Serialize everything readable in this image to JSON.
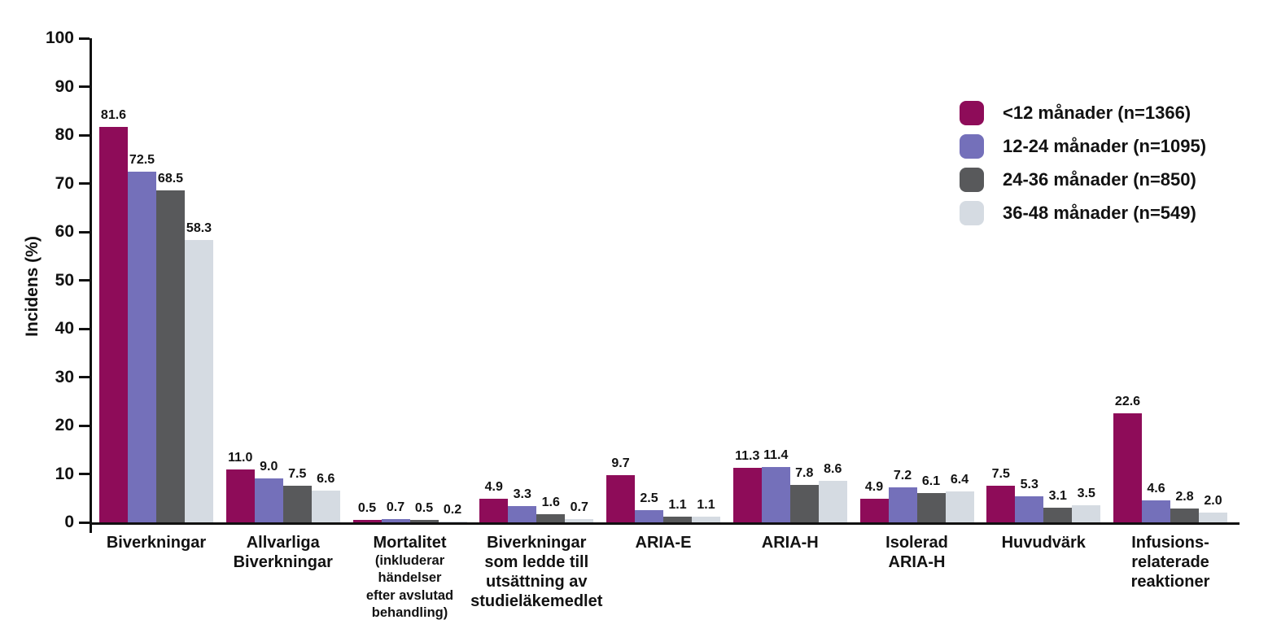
{
  "figure": {
    "background": "#ffffff",
    "axis_color": "#111111",
    "text_color": "#121212"
  },
  "chart_data": {
    "type": "bar",
    "title": "",
    "xlabel": "",
    "ylabel": "Incidens (%)",
    "ylim": [
      0,
      100
    ],
    "yticks": [
      0,
      10,
      20,
      30,
      40,
      50,
      60,
      70,
      80,
      90,
      100
    ],
    "grid": false,
    "legend_position": "top-right",
    "value_label_decimals": 1,
    "categories": [
      {
        "lines": [
          "Biverkningar"
        ],
        "sub_lines": []
      },
      {
        "lines": [
          "Allvarliga",
          "Biverkningar"
        ],
        "sub_lines": []
      },
      {
        "lines": [
          "Mortalitet"
        ],
        "sub_lines": [
          "(inkluderar",
          "händelser",
          "efter avslutad",
          "behandling)"
        ]
      },
      {
        "lines": [
          "Biverkningar",
          "som ledde till",
          "utsättning av",
          "studieläkemedlet"
        ],
        "sub_lines": []
      },
      {
        "lines": [
          "ARIA-E"
        ],
        "sub_lines": []
      },
      {
        "lines": [
          "ARIA-H"
        ],
        "sub_lines": []
      },
      {
        "lines": [
          "Isolerad",
          "ARIA-H"
        ],
        "sub_lines": []
      },
      {
        "lines": [
          "Huvudvärk"
        ],
        "sub_lines": []
      },
      {
        "lines": [
          "Infusions-",
          "relaterade",
          "reaktioner"
        ],
        "sub_lines": []
      }
    ],
    "series": [
      {
        "name": "<12 månader (n=1366)",
        "color": "#8E0C59",
        "values": [
          81.6,
          11.0,
          0.5,
          4.9,
          9.7,
          11.3,
          4.9,
          7.5,
          22.6
        ]
      },
      {
        "name": "12-24 månader (n=1095)",
        "color": "#7470BA",
        "values": [
          72.5,
          9.0,
          0.7,
          3.3,
          2.5,
          11.4,
          7.2,
          5.3,
          4.6
        ]
      },
      {
        "name": "24-36 månader (n=850)",
        "color": "#58595B",
        "values": [
          68.5,
          7.5,
          0.5,
          1.6,
          1.1,
          7.8,
          6.1,
          3.1,
          2.8
        ]
      },
      {
        "name": "36-48 månader (n=549)",
        "color": "#D5DBE2",
        "values": [
          58.3,
          6.6,
          0.2,
          0.7,
          1.1,
          8.6,
          6.4,
          3.5,
          2.0
        ]
      }
    ]
  }
}
